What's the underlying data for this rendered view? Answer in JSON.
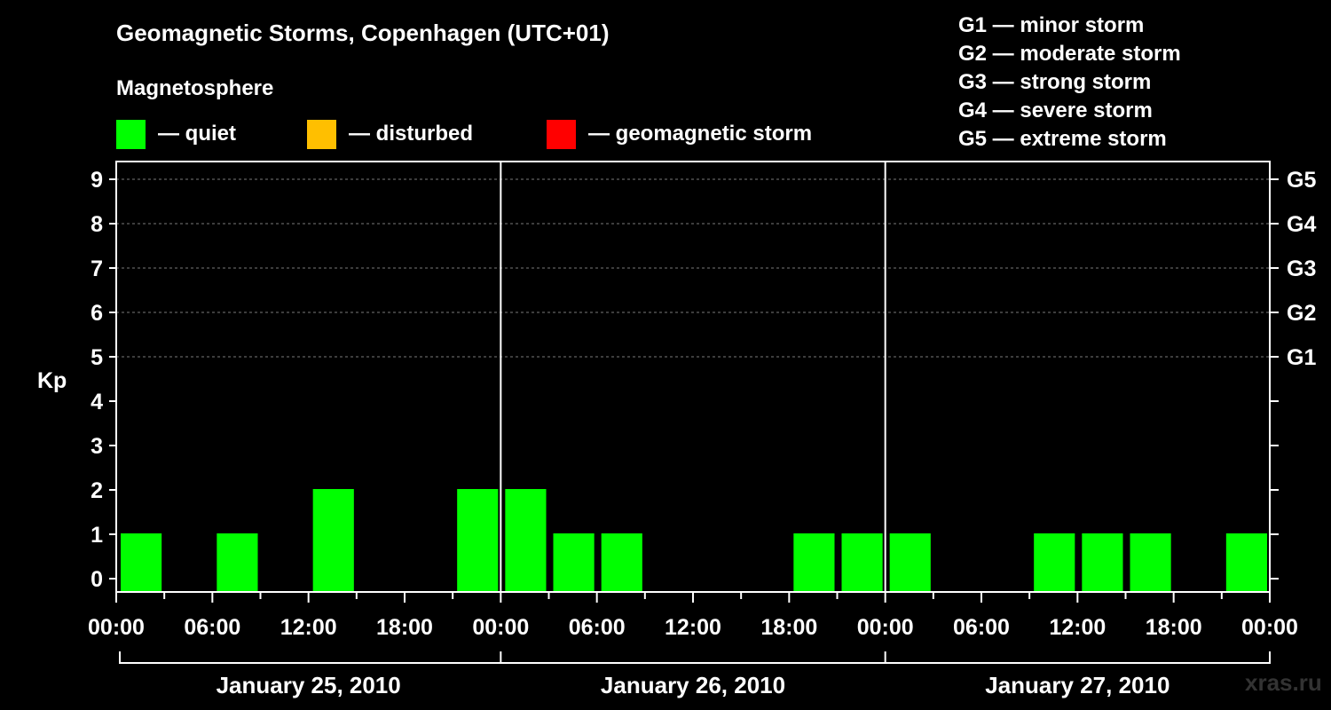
{
  "title": "Geomagnetic Storms, Copenhagen (UTC+01)",
  "legend": {
    "heading": "Magnetosphere",
    "items": [
      {
        "label": "— quiet",
        "color": "#00ff00"
      },
      {
        "label": "— disturbed",
        "color": "#ffbf00"
      },
      {
        "label": "— geomagnetic storm",
        "color": "#ff0000"
      }
    ]
  },
  "storm_scale": [
    "G1 — minor storm",
    "G2 — moderate storm",
    "G3 — strong storm",
    "G4 — severe storm",
    "G5 — extreme storm"
  ],
  "watermark": "xras.ru",
  "chart_data": {
    "type": "bar",
    "ylabel": "Kp",
    "ylim": [
      0,
      9
    ],
    "yticks": [
      "0",
      "1",
      "2",
      "3",
      "4",
      "5",
      "6",
      "7",
      "8",
      "9"
    ],
    "right_axis_labels": [
      {
        "kp": 5,
        "label": "G1"
      },
      {
        "kp": 6,
        "label": "G2"
      },
      {
        "kp": 7,
        "label": "G3"
      },
      {
        "kp": 8,
        "label": "G4"
      },
      {
        "kp": 9,
        "label": "G5"
      }
    ],
    "grid": "dashed horizontal at Kp 5-9",
    "x_range_hours": [
      0,
      72
    ],
    "xtick_labels": [
      "00:00",
      "06:00",
      "12:00",
      "18:00",
      "00:00",
      "06:00",
      "12:00",
      "18:00",
      "00:00",
      "06:00",
      "12:00",
      "18:00",
      "00:00"
    ],
    "days": [
      "January 25, 2010",
      "January 26, 2010",
      "January 27, 2010"
    ],
    "bar_hours": 3,
    "values": [
      1,
      0,
      1,
      0,
      2,
      0,
      0,
      2,
      2,
      1,
      1,
      0,
      0,
      0,
      1,
      1,
      1,
      0,
      0,
      1,
      1,
      1,
      0,
      1
    ],
    "bar_color": "#00ff00"
  }
}
